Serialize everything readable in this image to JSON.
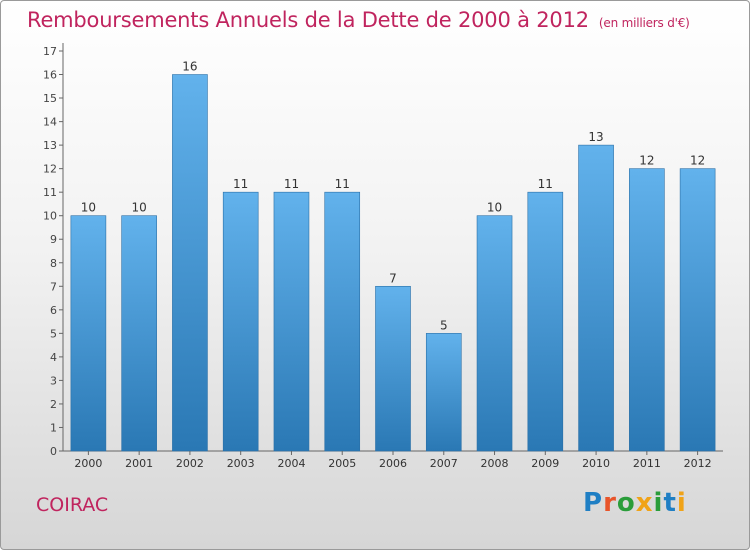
{
  "header": {
    "title": "Remboursements Annuels de la Dette de 2000 à 2012",
    "subtitle": "(en milliers d'€)"
  },
  "footer": {
    "city": "COIRAC",
    "logo": "Proxiti"
  },
  "colors": {
    "title": "#c0245e",
    "bar_top": "#62b2ec",
    "bar_bottom": "#2a78b4",
    "logo_letters": [
      "#1f7fc4",
      "#e8542a",
      "#2a9d3a",
      "#f0a318",
      "#2a9d3a",
      "#1f7fc4",
      "#f0a318"
    ]
  },
  "chart_data": {
    "type": "bar",
    "title": "Remboursements Annuels de la Dette de 2000 à 2012",
    "categories": [
      "2000",
      "2001",
      "2002",
      "2003",
      "2004",
      "2005",
      "2006",
      "2007",
      "2008",
      "2009",
      "2010",
      "2011",
      "2012"
    ],
    "values": [
      10,
      10,
      16,
      11,
      11,
      11,
      7,
      5,
      10,
      11,
      13,
      12,
      12
    ],
    "ylim": [
      0,
      17
    ],
    "yticks": [
      0,
      1,
      2,
      3,
      4,
      5,
      6,
      7,
      8,
      9,
      10,
      11,
      12,
      13,
      14,
      15,
      16,
      17
    ],
    "grid": false,
    "data_labels": true
  }
}
